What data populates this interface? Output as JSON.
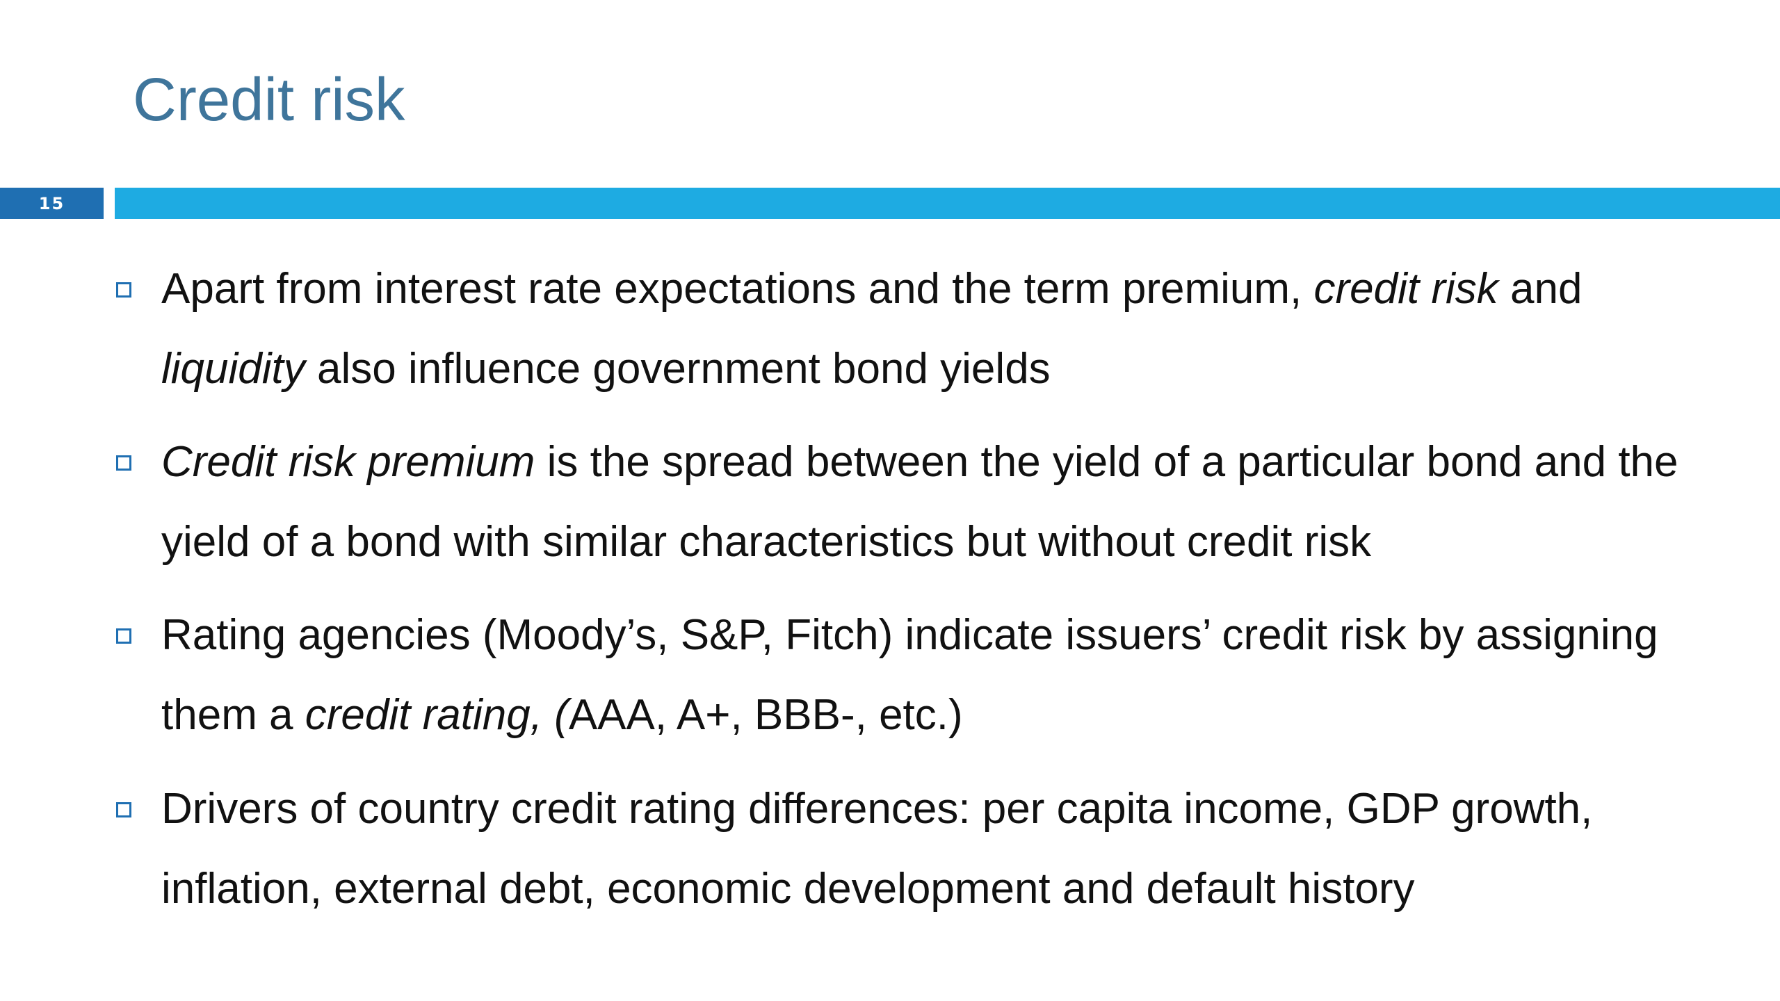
{
  "slide": {
    "title": "Credit risk",
    "number": "15"
  },
  "bullets": [
    {
      "lead": "Apart from interest rate expectations and the term premium, ",
      "em1": "credit risk",
      "mid": " and ",
      "em2": "liquidity",
      "tail": " also influence government bond yields"
    },
    {
      "em1": "Credit risk premium",
      "tail": " is the spread between the yield of a particular bond and the yield of a bond with similar characteristics but without credit risk"
    },
    {
      "lead": "Rating agencies (Moody’s, S&P, Fitch) indicate issuers’ credit risk by assigning them a ",
      "em1": "credit rating, (",
      "tail": "AAA, A+, BBB-, etc.)"
    },
    {
      "lead": "Drivers of country credit rating differences: per capita income, GDP growth, inflation, external debt, economic development and default history"
    }
  ],
  "colors": {
    "title": "#3f759b",
    "number_bar": "#1f6fb2",
    "accent_bar": "#1eabe2",
    "bullet_marker": "#1f6fb2",
    "text": "#111111"
  }
}
